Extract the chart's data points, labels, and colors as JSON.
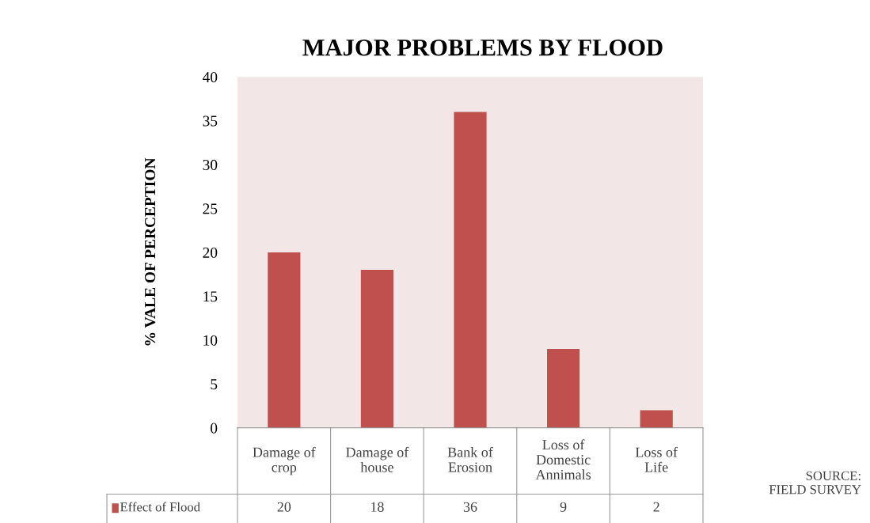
{
  "chart_data": {
    "type": "bar",
    "title": "MAJOR PROBLEMS BY FLOOD",
    "ylabel": "% VALE OF PERCEPTION",
    "categories": [
      "Damage of\ncrop",
      "Damage of\nhouse",
      "Bank of\nErosion",
      "Loss of\nDomestic\nAnnimals",
      "Loss of\nLife"
    ],
    "series": [
      {
        "name": "Effect of Flood",
        "color": "#c0504d",
        "values": [
          20,
          18,
          36,
          9,
          2
        ]
      }
    ],
    "ylim": [
      0,
      40
    ],
    "yticks": [
      0,
      5,
      10,
      15,
      20,
      25,
      30,
      35,
      40
    ],
    "data_labels": true,
    "legend": "bottom",
    "grid": false,
    "annotations": [
      "SOURCE:\nFIELD SURVEY"
    ]
  }
}
